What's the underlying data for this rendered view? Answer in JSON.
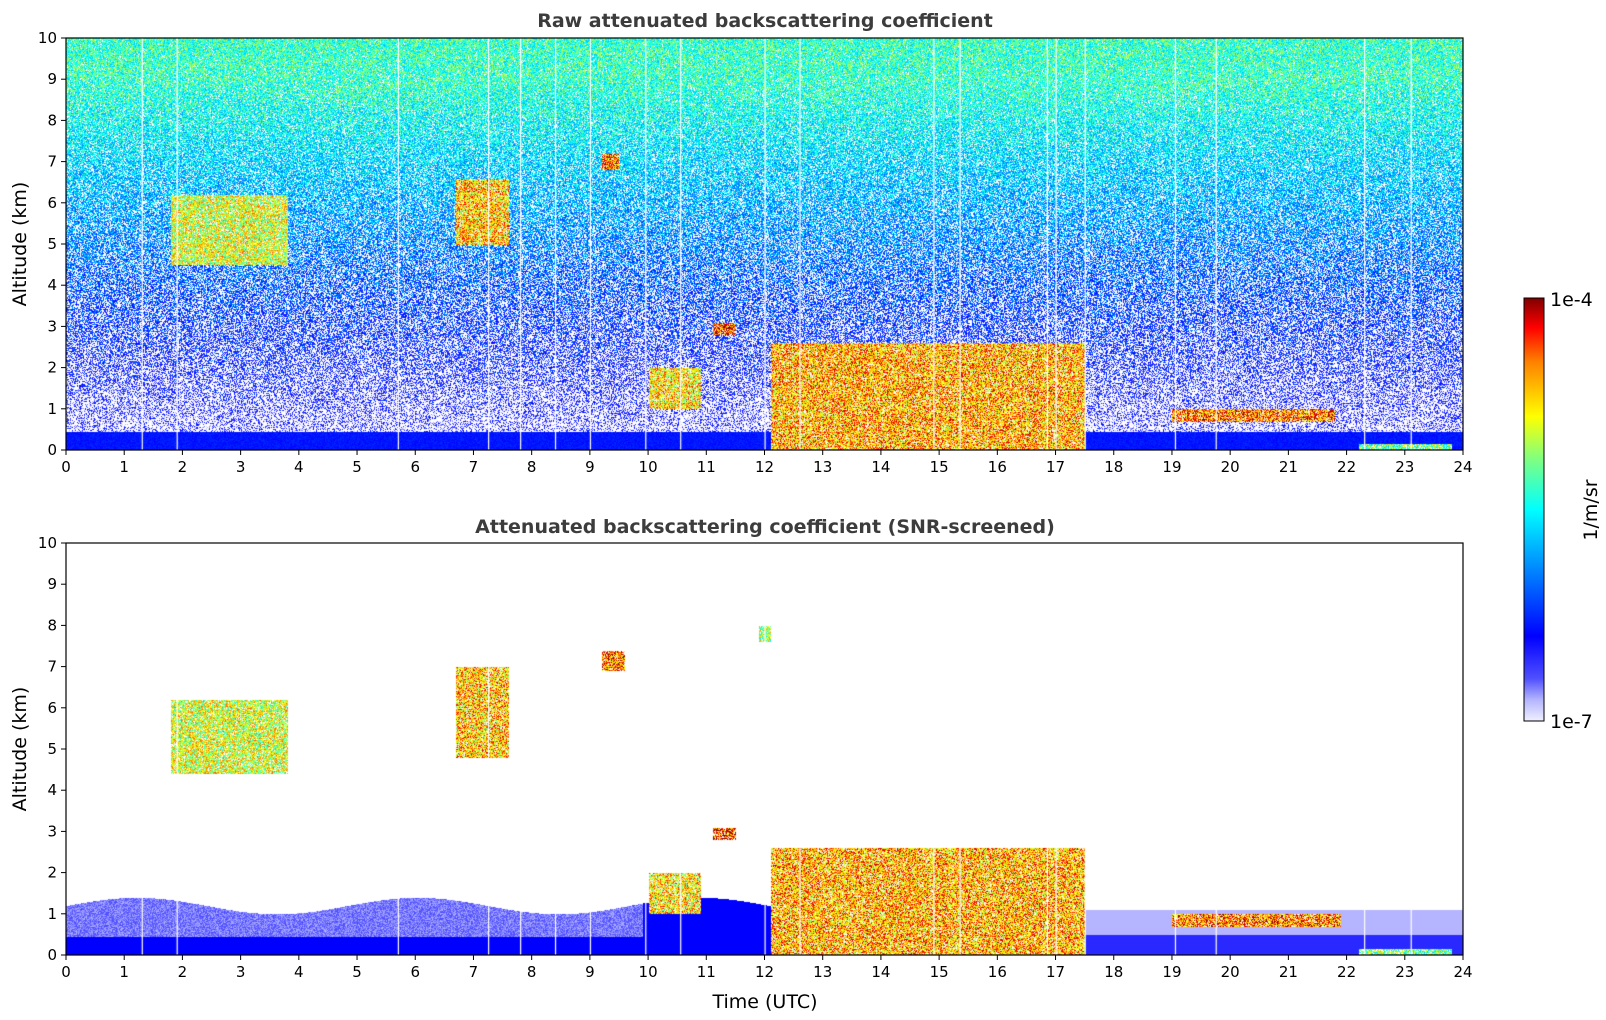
{
  "chart_data": [
    {
      "type": "heatmap",
      "title": "Raw attenuated backscattering coefficient",
      "xlabel": "",
      "ylabel": "Altitude (km)",
      "xlim": [
        0,
        24
      ],
      "ylim": [
        0,
        10
      ],
      "xticks": [
        "0",
        "1",
        "2",
        "3",
        "4",
        "5",
        "6",
        "7",
        "8",
        "9",
        "10",
        "11",
        "12",
        "13",
        "14",
        "15",
        "16",
        "17",
        "18",
        "19",
        "20",
        "21",
        "22",
        "23",
        "24"
      ],
      "yticks": [
        "0",
        "1",
        "2",
        "3",
        "4",
        "5",
        "6",
        "7",
        "8",
        "9",
        "10"
      ],
      "background": "noisy",
      "features": [
        {
          "x": [
            1.8,
            3.8
          ],
          "y": [
            4.5,
            6.2
          ],
          "level": 0.7
        },
        {
          "x": [
            6.7,
            7.6
          ],
          "y": [
            5.0,
            6.6
          ],
          "level": 0.78
        },
        {
          "x": [
            9.2,
            9.5
          ],
          "y": [
            6.8,
            7.2
          ],
          "level": 0.85
        },
        {
          "x": [
            11.1,
            11.5
          ],
          "y": [
            2.8,
            3.1
          ],
          "level": 0.9
        },
        {
          "x": [
            10.0,
            10.9
          ],
          "y": [
            1.0,
            2.0
          ],
          "level": 0.75
        },
        {
          "x": [
            12.1,
            17.5
          ],
          "y": [
            0.0,
            2.6
          ],
          "level": 0.8
        },
        {
          "x": [
            19.0,
            21.8
          ],
          "y": [
            0.7,
            1.0
          ],
          "level": 0.85
        },
        {
          "x": [
            22.2,
            23.8
          ],
          "y": [
            0.0,
            0.15
          ],
          "level": 0.6
        }
      ],
      "white_gaps": [
        1.3,
        1.9,
        5.7,
        7.25,
        7.8,
        8.4,
        9.0,
        9.95,
        10.55,
        12.0,
        12.6,
        14.9,
        15.35,
        16.85,
        17.0,
        17.5,
        19.05,
        19.75,
        22.3,
        23.1
      ]
    },
    {
      "type": "heatmap",
      "title": "Attenuated backscattering coefficient (SNR-screened)",
      "xlabel": "Time (UTC)",
      "ylabel": "Altitude (km)",
      "xlim": [
        0,
        24
      ],
      "ylim": [
        0,
        10
      ],
      "xticks": [
        "0",
        "1",
        "2",
        "3",
        "4",
        "5",
        "6",
        "7",
        "8",
        "9",
        "10",
        "11",
        "12",
        "13",
        "14",
        "15",
        "16",
        "17",
        "18",
        "19",
        "20",
        "21",
        "22",
        "23",
        "24"
      ],
      "yticks": [
        "0",
        "1",
        "2",
        "3",
        "4",
        "5",
        "6",
        "7",
        "8",
        "9",
        "10"
      ],
      "background": "screened",
      "features": [
        {
          "x": [
            1.8,
            3.8
          ],
          "y": [
            4.4,
            6.2
          ],
          "level": 0.7
        },
        {
          "x": [
            6.7,
            7.6
          ],
          "y": [
            4.8,
            7.0
          ],
          "level": 0.78
        },
        {
          "x": [
            9.2,
            9.6
          ],
          "y": [
            6.9,
            7.4
          ],
          "level": 0.85
        },
        {
          "x": [
            11.9,
            12.1
          ],
          "y": [
            7.6,
            8.0
          ],
          "level": 0.65
        },
        {
          "x": [
            11.1,
            11.5
          ],
          "y": [
            2.8,
            3.1
          ],
          "level": 0.9
        },
        {
          "x": [
            10.0,
            10.9
          ],
          "y": [
            1.0,
            2.0
          ],
          "level": 0.75
        },
        {
          "x": [
            12.1,
            17.5
          ],
          "y": [
            0.0,
            2.6
          ],
          "level": 0.8
        },
        {
          "x": [
            19.0,
            21.9
          ],
          "y": [
            0.7,
            1.0
          ],
          "level": 0.85
        },
        {
          "x": [
            22.2,
            23.8
          ],
          "y": [
            0.0,
            0.15
          ],
          "level": 0.6
        }
      ],
      "white_gaps": [
        1.3,
        1.9,
        5.7,
        7.25,
        7.8,
        8.4,
        9.0,
        9.95,
        10.55,
        12.0,
        12.6,
        14.9,
        15.35,
        16.85,
        17.0,
        17.5,
        19.05,
        19.75,
        22.3,
        23.1
      ]
    }
  ],
  "colorbar": {
    "min_label": "1e-7",
    "max_label": "1e-4",
    "unit_label": "1/m/sr",
    "scale": "log",
    "colormap": "jet"
  }
}
